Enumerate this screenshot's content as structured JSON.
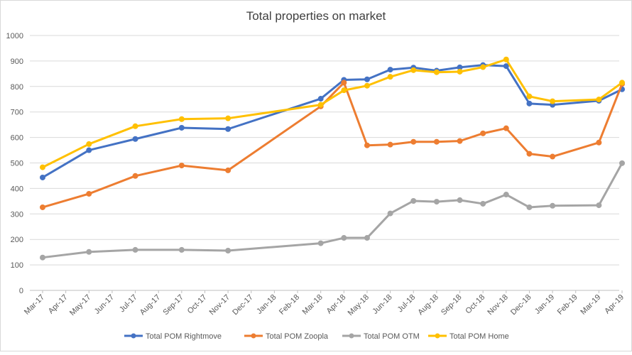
{
  "chart_data": {
    "type": "line",
    "title": "Total properties on market",
    "xlabel": "",
    "ylabel": "",
    "ylim": [
      0,
      1000
    ],
    "yticks": [
      0,
      100,
      200,
      300,
      400,
      500,
      600,
      700,
      800,
      900,
      1000
    ],
    "grid": true,
    "legend_position": "bottom",
    "categories": [
      "Mar-17",
      "Apr-17",
      "May-17",
      "Jun-17",
      "Jul-17",
      "Aug-17",
      "Sep-17",
      "Oct-17",
      "Nov-17",
      "Dec-17",
      "Jan-18",
      "Feb-18",
      "Mar-18",
      "Apr-18",
      "May-18",
      "Jun-18",
      "Jul-18",
      "Aug-18",
      "Sep-18",
      "Oct-18",
      "Nov-18",
      "Dec-18",
      "Jan-19",
      "Feb-19",
      "Mar-19",
      "Apr-19"
    ],
    "series": [
      {
        "name": "Total POM Rightmove",
        "color": "#4472C4",
        "points": [
          {
            "x": "Mar-17",
            "y": 443
          },
          {
            "x": "May-17",
            "y": 550
          },
          {
            "x": "Jul-17",
            "y": 594
          },
          {
            "x": "Sep-17",
            "y": 638
          },
          {
            "x": "Nov-17",
            "y": 633
          },
          {
            "x": "Mar-18",
            "y": 752
          },
          {
            "x": "Apr-18",
            "y": 826
          },
          {
            "x": "May-18",
            "y": 828
          },
          {
            "x": "Jun-18",
            "y": 866
          },
          {
            "x": "Jul-18",
            "y": 874
          },
          {
            "x": "Aug-18",
            "y": 862
          },
          {
            "x": "Sep-18",
            "y": 875
          },
          {
            "x": "Oct-18",
            "y": 884
          },
          {
            "x": "Nov-18",
            "y": 880
          },
          {
            "x": "Dec-18",
            "y": 733
          },
          {
            "x": "Jan-19",
            "y": 728
          },
          {
            "x": "Mar-19",
            "y": 744
          },
          {
            "x": "Apr-19",
            "y": 789
          }
        ]
      },
      {
        "name": "Total POM Zoopla",
        "color": "#ED7D31",
        "points": [
          {
            "x": "Mar-17",
            "y": 326
          },
          {
            "x": "May-17",
            "y": 379
          },
          {
            "x": "Jul-17",
            "y": 449
          },
          {
            "x": "Sep-17",
            "y": 490
          },
          {
            "x": "Nov-17",
            "y": 471
          },
          {
            "x": "Mar-18",
            "y": 722
          },
          {
            "x": "Apr-18",
            "y": 815
          },
          {
            "x": "May-18",
            "y": 569
          },
          {
            "x": "Jun-18",
            "y": 572
          },
          {
            "x": "Jul-18",
            "y": 583
          },
          {
            "x": "Aug-18",
            "y": 583
          },
          {
            "x": "Sep-18",
            "y": 586
          },
          {
            "x": "Oct-18",
            "y": 616
          },
          {
            "x": "Nov-18",
            "y": 636
          },
          {
            "x": "Dec-18",
            "y": 536
          },
          {
            "x": "Jan-19",
            "y": 525
          },
          {
            "x": "Mar-19",
            "y": 580
          },
          {
            "x": "Apr-19",
            "y": 810
          }
        ]
      },
      {
        "name": "Total POM OTM",
        "color": "#A5A5A5",
        "points": [
          {
            "x": "Mar-17",
            "y": 129
          },
          {
            "x": "May-17",
            "y": 151
          },
          {
            "x": "Jul-17",
            "y": 159
          },
          {
            "x": "Sep-17",
            "y": 159
          },
          {
            "x": "Nov-17",
            "y": 156
          },
          {
            "x": "Mar-18",
            "y": 185
          },
          {
            "x": "Apr-18",
            "y": 206
          },
          {
            "x": "May-18",
            "y": 206
          },
          {
            "x": "Jun-18",
            "y": 302
          },
          {
            "x": "Jul-18",
            "y": 351
          },
          {
            "x": "Aug-18",
            "y": 348
          },
          {
            "x": "Sep-18",
            "y": 354
          },
          {
            "x": "Oct-18",
            "y": 340
          },
          {
            "x": "Nov-18",
            "y": 376
          },
          {
            "x": "Dec-18",
            "y": 326
          },
          {
            "x": "Jan-19",
            "y": 332
          },
          {
            "x": "Mar-19",
            "y": 334
          },
          {
            "x": "Apr-19",
            "y": 499
          }
        ]
      },
      {
        "name": "Total POM Home",
        "color": "#FFC000",
        "points": [
          {
            "x": "Mar-17",
            "y": 483
          },
          {
            "x": "May-17",
            "y": 574
          },
          {
            "x": "Jul-17",
            "y": 644
          },
          {
            "x": "Sep-17",
            "y": 672
          },
          {
            "x": "Nov-17",
            "y": 675
          },
          {
            "x": "Mar-18",
            "y": 728
          },
          {
            "x": "Apr-18",
            "y": 785
          },
          {
            "x": "May-18",
            "y": 803
          },
          {
            "x": "Jun-18",
            "y": 838
          },
          {
            "x": "Jul-18",
            "y": 864
          },
          {
            "x": "Aug-18",
            "y": 856
          },
          {
            "x": "Sep-18",
            "y": 858
          },
          {
            "x": "Oct-18",
            "y": 876
          },
          {
            "x": "Nov-18",
            "y": 906
          },
          {
            "x": "Dec-18",
            "y": 761
          },
          {
            "x": "Jan-19",
            "y": 742
          },
          {
            "x": "Mar-19",
            "y": 749
          },
          {
            "x": "Apr-19",
            "y": 815
          }
        ]
      }
    ]
  }
}
